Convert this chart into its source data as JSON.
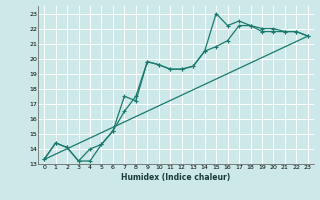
{
  "xlabel": "Humidex (Indice chaleur)",
  "bg_color": "#cce8e8",
  "grid_color": "#b0d8d8",
  "line_color": "#1a7a6e",
  "xlim": [
    -0.5,
    23.5
  ],
  "ylim": [
    13,
    23.5
  ],
  "xticks": [
    0,
    1,
    2,
    3,
    4,
    5,
    6,
    7,
    8,
    9,
    10,
    11,
    12,
    13,
    14,
    15,
    16,
    17,
    18,
    19,
    20,
    21,
    22,
    23
  ],
  "yticks": [
    13,
    14,
    15,
    16,
    17,
    18,
    19,
    20,
    21,
    22,
    23
  ],
  "line1_x": [
    0,
    1,
    2,
    3,
    4,
    5,
    6,
    7,
    8,
    9,
    10,
    11,
    12,
    13,
    14,
    15,
    16,
    17,
    18,
    19,
    20,
    21,
    22,
    23
  ],
  "line1_y": [
    13.3,
    14.4,
    14.1,
    13.2,
    14.0,
    14.3,
    15.2,
    16.5,
    17.5,
    19.8,
    19.6,
    19.3,
    19.3,
    19.5,
    20.5,
    20.8,
    21.2,
    22.2,
    22.2,
    22.0,
    22.0,
    21.8,
    21.8,
    21.5
  ],
  "line2_x": [
    0,
    1,
    2,
    3,
    4,
    5,
    6,
    7,
    8,
    9,
    10,
    11,
    12,
    13,
    14,
    15,
    16,
    17,
    18,
    19,
    20,
    21,
    22,
    23
  ],
  "line2_y": [
    13.3,
    14.4,
    14.1,
    13.2,
    13.2,
    14.3,
    15.2,
    17.5,
    17.2,
    19.8,
    19.6,
    19.3,
    19.3,
    19.5,
    20.5,
    23.0,
    22.2,
    22.5,
    22.2,
    21.8,
    21.8,
    21.8,
    21.8,
    21.5
  ],
  "line3_x": [
    0,
    23
  ],
  "line3_y": [
    13.3,
    21.5
  ]
}
